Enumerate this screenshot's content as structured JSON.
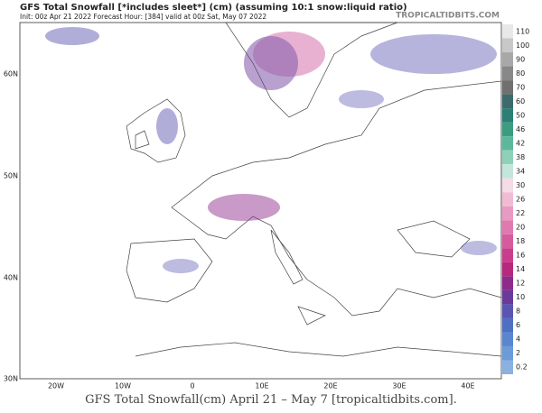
{
  "header": {
    "title": "GFS Total Snowfall [*includes sleet*] (cm) (assuming 10:1 snow:liquid ratio)",
    "subtitle": "Init: 00z Apr 21 2022   Forecast Hour: [384]   valid at 00z Sat, May 07 2022",
    "watermark": "TROPICALTIDBITS.COM"
  },
  "colorbar": {
    "labels": [
      "110",
      "100",
      "90",
      "80",
      "70",
      "60",
      "50",
      "46",
      "42",
      "38",
      "34",
      "30",
      "26",
      "22",
      "20",
      "18",
      "16",
      "14",
      "12",
      "10",
      "8",
      "6",
      "4",
      "2",
      "0.2"
    ],
    "colors": [
      "#e8e8e8",
      "#c8c8c8",
      "#a8a8a8",
      "#888888",
      "#707070",
      "#3d6b6b",
      "#2b7f74",
      "#3a9d80",
      "#5cb89a",
      "#8fd1b8",
      "#c3e6dc",
      "#f5dbe6",
      "#f0bcd4",
      "#e99ac2",
      "#e079b0",
      "#d65a9e",
      "#c93d8c",
      "#b8287d",
      "#8e2a8a",
      "#6a3a9a",
      "#5a55b0",
      "#4f6fc2",
      "#5a86cf",
      "#6c9bd8",
      "#8ab1e0"
    ]
  },
  "axes": {
    "lat_labels": [
      "60N",
      "50N",
      "40N",
      "30N"
    ],
    "lon_labels": [
      "20W",
      "10W",
      "0",
      "10E",
      "20E",
      "30E",
      "40E"
    ]
  },
  "caption": "GFS Total Snowfall(cm) April 21 – May 7 [tropicaltidbits.com]."
}
